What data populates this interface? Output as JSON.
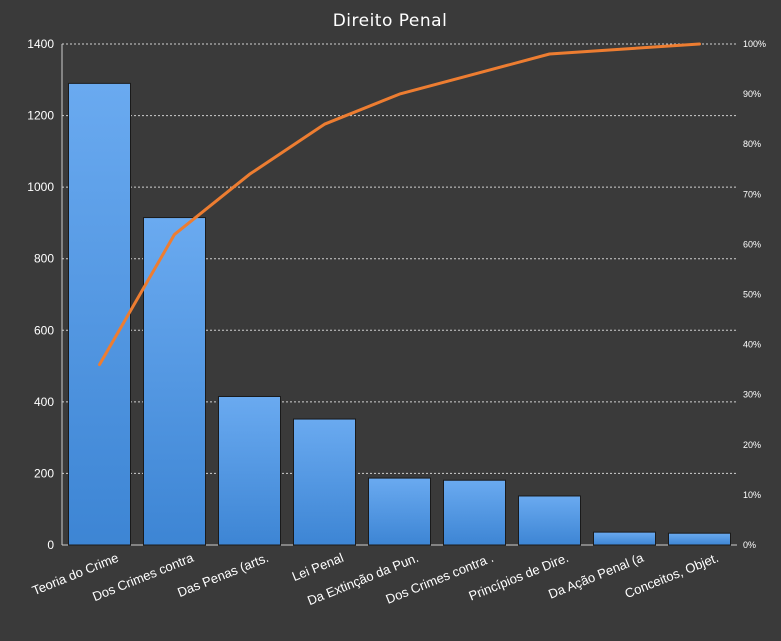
{
  "chart_data": {
    "type": "bar",
    "title": "Direito Penal",
    "categories": [
      "Teoria do Crime",
      "Dos Crimes contra",
      "Das Penas (arts.",
      "Lei Penal",
      "Da Extinção da Pun.",
      "Dos Crimes contra   .",
      "Princípios de Dire.",
      "Da Ação Penal (a",
      "Conceitos, Objet."
    ],
    "series": [
      {
        "type": "bar",
        "values": [
          1290,
          915,
          415,
          352,
          187,
          181,
          137,
          36,
          33
        ]
      },
      {
        "type": "line",
        "axis": "right",
        "values": [
          36,
          62,
          74,
          84,
          90,
          94,
          98,
          99,
          100
        ]
      }
    ],
    "ylim": [
      0,
      1400
    ],
    "yticks": [
      "0",
      "200",
      "400",
      "600",
      "800",
      "1000",
      "1200",
      "1400"
    ],
    "y2lim": [
      0,
      100
    ],
    "y2ticks": [
      "0%",
      "10%",
      "20%",
      "30%",
      "40%",
      "50%",
      "60%",
      "70%",
      "80%",
      "90%",
      "100%"
    ],
    "grid": true,
    "colors": {
      "background": "#3a3a3a",
      "bar": "#4a90d9",
      "line": "#ed7d31",
      "text": "#ffffff"
    }
  }
}
